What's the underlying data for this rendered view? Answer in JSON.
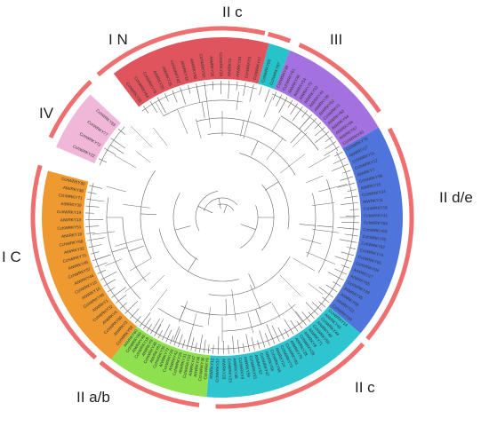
{
  "title": "",
  "colors": {
    "ring": "#ee6f6f",
    "branch": "#666666",
    "IN": "#e0555d",
    "IIc_small": "#26c3c8",
    "III": "#a472e0",
    "IIde": "#4f74dc",
    "IIc": "#2ec4d0",
    "IIab": "#8ee04e",
    "IC": "#ee9a30",
    "IV": "#f1b7d8"
  },
  "groups": [
    {
      "key": "IN",
      "label": "I N",
      "color_key": "IN",
      "tips": [
        "CchWRKY33",
        "CchWRKY64",
        "CchWRKY78",
        "AtWRKY25",
        "AtWRKY26",
        "CchWRKY42",
        "AtWRKY33",
        "AtWRKY58",
        "CchWRKY82",
        "AtWRKY20",
        "CchWRKY39",
        "AtWRKY2",
        "AtWRKY34",
        "CchWRKY3",
        "CchWRKY17"
      ]
    },
    {
      "key": "IIc_small",
      "label": "II c",
      "color_key": "IIc_small",
      "tips": [
        "CchWRKY65",
        "CchWRKY87"
      ]
    },
    {
      "key": "III",
      "label": "III",
      "color_key": "III",
      "tips": [
        "CchWRKY48",
        "CchWRKY61",
        "AtWRKY46",
        "AtWRKY54",
        "AtWRKY70",
        "AtWRKY53",
        "AtWRKY41",
        "AtWRKY30",
        "AtWRKY62",
        "CchWRKY1",
        "AtWRKY63",
        "AtWRKY64",
        "AtWRKY66",
        "AtWRKY67",
        "CchWRKY40"
      ]
    },
    {
      "key": "IIde",
      "label": "II d/e",
      "color_key": "IIde",
      "tips": [
        "CchWRKY79",
        "AtWRKY17",
        "CchWRKY11",
        "CchWRKY12",
        "AtWRKY7",
        "CchWRKY08",
        "AtWRKY15",
        "CchWRKY34",
        "AtWRKY11",
        "CchWRKY16",
        "CchWRKY41",
        "CchWRKY85",
        "CchWRKY69",
        "CchWRKY55",
        "CchWRKY52",
        "CchWRKY74",
        "CchWRKY05",
        "CchWRKY04",
        "AtWRKY27",
        "AtWRKY65",
        "CchWRKY29",
        "AtWRKY35",
        "AtWRKY69",
        "AtWRKY22",
        "CchWRKY24"
      ]
    },
    {
      "key": "IIc",
      "label": "II c",
      "color_key": "IIc",
      "tips": [
        "CchWRKY14",
        "AtWRKY43",
        "CchWRKY44",
        "AtWRKY49",
        "CchWRKY50",
        "AtWRKY71",
        "AtWRKY8",
        "CchWRKY28",
        "AtWRKY28",
        "AtWRKY75",
        "CchWRKY81",
        "CchWRKY73",
        "AtWRKY24",
        "CchWRKY56",
        "AtWRKY56",
        "CchWRKY47",
        "AtWRKY57",
        "CchWRKY21",
        "AtWRKY59",
        "CchWRKY9",
        "AtWRKY48",
        "CchWRKY23",
        "AtWRKY23",
        "CchWRKY37",
        "AtWRKY12"
      ]
    },
    {
      "key": "IIab",
      "label": "II a/b",
      "color_key": "IIab",
      "tips": [
        "CchWRKY6",
        "CchWRKY36",
        "AtWRKY36",
        "AtWRKY47",
        "CchWRKY53",
        "AtWRKY31",
        "CchWRKY26",
        "AtWRKY42",
        "CchWRKY20",
        "AtWRKY72",
        "CchWRKY35",
        "AtWRKY61",
        "CchWRKY45",
        "AtWRKY9",
        "CchWRKY18",
        "AtWRKY40",
        "CchWRKY60",
        "AtWRKY60"
      ]
    },
    {
      "key": "IC",
      "label": "I C",
      "color_key": "IC",
      "tips": [
        "CchWRKY58",
        "AtWRKY3",
        "CchWRKY80",
        "AtWRKY4",
        "CchWRKY32",
        "AtWRKY1",
        "CchWRKY46",
        "AtWRKY10",
        "CchWRKY15",
        "AtWRKY44",
        "CchWRKY57",
        "AtWRKY45",
        "CchWRKY70",
        "AtWRKY32",
        "CchWRKY68",
        "AtWRKY19",
        "CchWRKY51",
        "AtWRKY13",
        "CchWRKY19",
        "AtWRKY39",
        "CchWRKY71",
        "AtWRKY38",
        "CchWRKY30"
      ]
    },
    {
      "key": "IV",
      "label": "IV",
      "color_key": "IV",
      "tips": [
        "CchWRKY22",
        "CchWRKY72",
        "CchWRKY77",
        "CchWRKY83"
      ]
    }
  ]
}
